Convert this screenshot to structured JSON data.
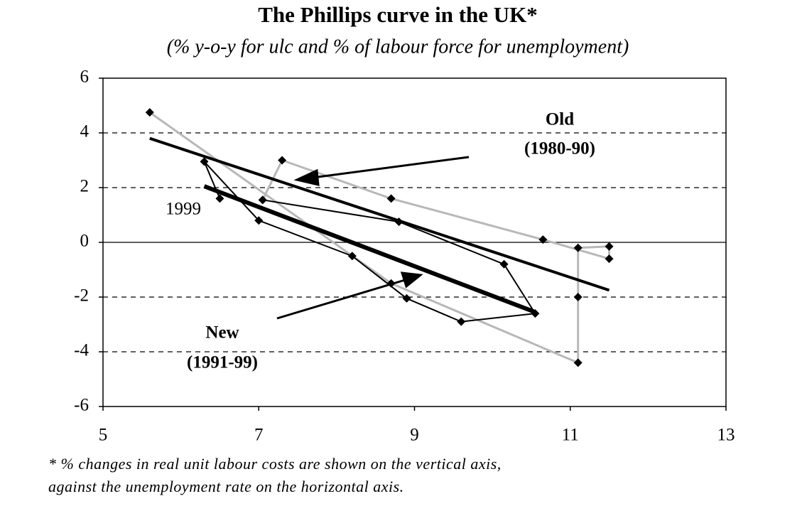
{
  "chart_data": {
    "type": "line",
    "title": "The Phillips curve in the UK*",
    "subtitle": "(% y-o-y for ulc and % of labour force for unemployment)",
    "xlim": [
      5,
      13
    ],
    "xticks": [
      5,
      7,
      9,
      11,
      13
    ],
    "ylim": [
      -6,
      6
    ],
    "yticks": [
      -6,
      -4,
      -2,
      0,
      2,
      4,
      6
    ],
    "grid": true,
    "series": [
      {
        "color": "#b8b8b8",
        "width": 3,
        "marker": true,
        "x": [
          7.05,
          7.3,
          8.7,
          10.65,
          11.5,
          11.5,
          11.1,
          11.1,
          11.1,
          8.7,
          5.6
        ],
        "values": [
          1.55,
          3.0,
          1.6,
          0.1,
          -0.6,
          -0.15,
          -0.2,
          -2.0,
          -4.4,
          -1.5,
          4.75
        ]
      },
      {
        "color": "#000000",
        "width": 2,
        "marker": true,
        "x": [
          6.5,
          6.3,
          7.0,
          8.2,
          8.9,
          9.6,
          10.55,
          10.15,
          8.8,
          7.05
        ],
        "values": [
          1.6,
          2.95,
          0.8,
          -0.5,
          -2.05,
          -2.9,
          -2.6,
          -0.8,
          0.75,
          1.55
        ]
      },
      {
        "color": "#000000",
        "width": 4,
        "marker": false,
        "x": [
          5.6,
          11.5
        ],
        "values": [
          3.8,
          -1.75
        ]
      },
      {
        "color": "#000000",
        "width": 6,
        "marker": false,
        "x": [
          6.3,
          10.55
        ],
        "values": [
          2.05,
          -2.55
        ]
      }
    ],
    "annotations": [
      "Old",
      "(1980-90)",
      "New",
      "(1991-99)",
      "1999"
    ],
    "footnote": [
      "* % changes in real unit labour costs are shown on the vertical axis,",
      "against the unemployment rate on the horizontal axis."
    ]
  }
}
